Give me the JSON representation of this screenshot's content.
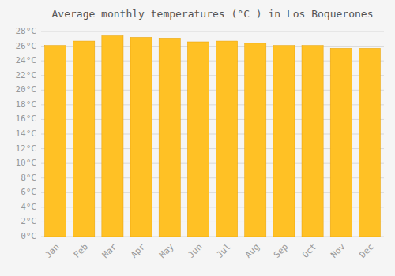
{
  "chart_data": {
    "type": "bar",
    "title": "Average monthly temperatures (°C ) in Los Boquerones",
    "categories": [
      "Jan",
      "Feb",
      "Mar",
      "Apr",
      "May",
      "Jun",
      "Jul",
      "Aug",
      "Sep",
      "Oct",
      "Nov",
      "Dec"
    ],
    "values": [
      26.1,
      26.7,
      27.4,
      27.2,
      27.1,
      26.6,
      26.7,
      26.4,
      26.1,
      26.1,
      25.7,
      25.7
    ],
    "color": "#FFC125",
    "ylim": [
      0,
      28
    ],
    "yticks": [
      {
        "value": 0,
        "label": "0°C"
      },
      {
        "value": 2,
        "label": "2°C"
      },
      {
        "value": 4,
        "label": "4°C"
      },
      {
        "value": 6,
        "label": "6°C"
      },
      {
        "value": 8,
        "label": "8°C"
      },
      {
        "value": 10,
        "label": "10°C"
      },
      {
        "value": 12,
        "label": "12°C"
      },
      {
        "value": 14,
        "label": "14°C"
      },
      {
        "value": 16,
        "label": "16°C"
      },
      {
        "value": 18,
        "label": "18°C"
      },
      {
        "value": 20,
        "label": "20°C"
      },
      {
        "value": 22,
        "label": "22°C"
      },
      {
        "value": 24,
        "label": "24°C"
      },
      {
        "value": 26,
        "label": "26°C"
      },
      {
        "value": 28,
        "label": "28°C"
      }
    ],
    "grid": true
  }
}
